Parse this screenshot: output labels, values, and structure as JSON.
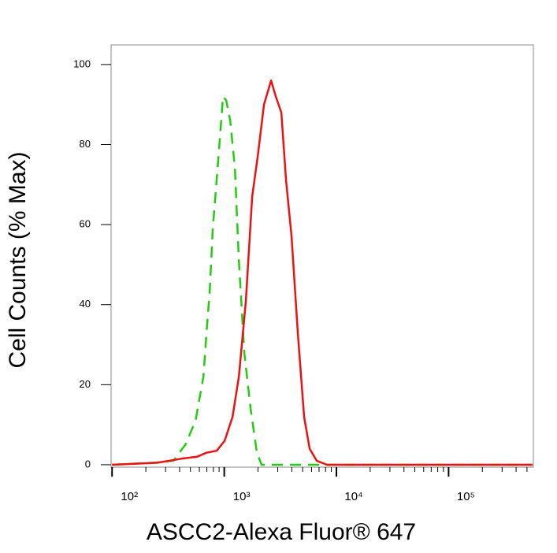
{
  "chart_data": {
    "type": "line",
    "x_label": "ASCC2-Alexa Fluor® 647",
    "y_label": "Cell Counts (% Max)",
    "xscale": "log",
    "xlim": [
      98,
      570000
    ],
    "ylim": [
      -0.6,
      104.9
    ],
    "xticks": [
      {
        "value": 100,
        "label": "10²"
      },
      {
        "value": 1000,
        "label": "10³"
      },
      {
        "value": 10000,
        "label": "10⁴"
      },
      {
        "value": 100000,
        "label": "10⁵"
      }
    ],
    "xminorticks": [
      200,
      300,
      400,
      500,
      600,
      700,
      800,
      900,
      2000,
      3000,
      4000,
      5000,
      6000,
      7000,
      8000,
      9000,
      20000,
      30000,
      40000,
      50000,
      60000,
      70000,
      80000,
      90000,
      200000,
      300000,
      400000,
      500000
    ],
    "yticks": [
      0,
      20,
      40,
      60,
      80,
      100
    ],
    "series": [
      {
        "color": "#22cc11",
        "linestyle": "dashed",
        "x": [
          100,
          235,
          352,
          450,
          555,
          652,
          695,
          741,
          791,
          900,
          976,
          1042,
          1130,
          1245,
          1350,
          1511,
          1719,
          1955,
          2154,
          10000,
          560000
        ],
        "values": [
          0,
          0.5,
          1,
          5,
          11,
          22,
          33,
          43,
          59,
          79,
          92,
          91,
          86,
          74,
          51,
          28,
          14,
          3,
          0,
          0,
          0
        ]
      },
      {
        "color": "#ee1111",
        "linestyle": "solid",
        "x": [
          100,
          255,
          415,
          573,
          695,
          857,
          1009,
          1186,
          1350,
          1560,
          1775,
          1987,
          2261,
          2616,
          2884,
          3230,
          3558,
          3981,
          4530,
          5155,
          5770,
          6676,
          8245,
          560000
        ],
        "values": [
          0,
          0.5,
          1.5,
          2,
          3,
          3.5,
          6,
          12,
          22,
          41,
          67,
          77,
          90,
          96,
          92,
          88,
          71,
          57,
          33,
          12,
          4,
          1,
          0,
          0
        ]
      }
    ]
  }
}
